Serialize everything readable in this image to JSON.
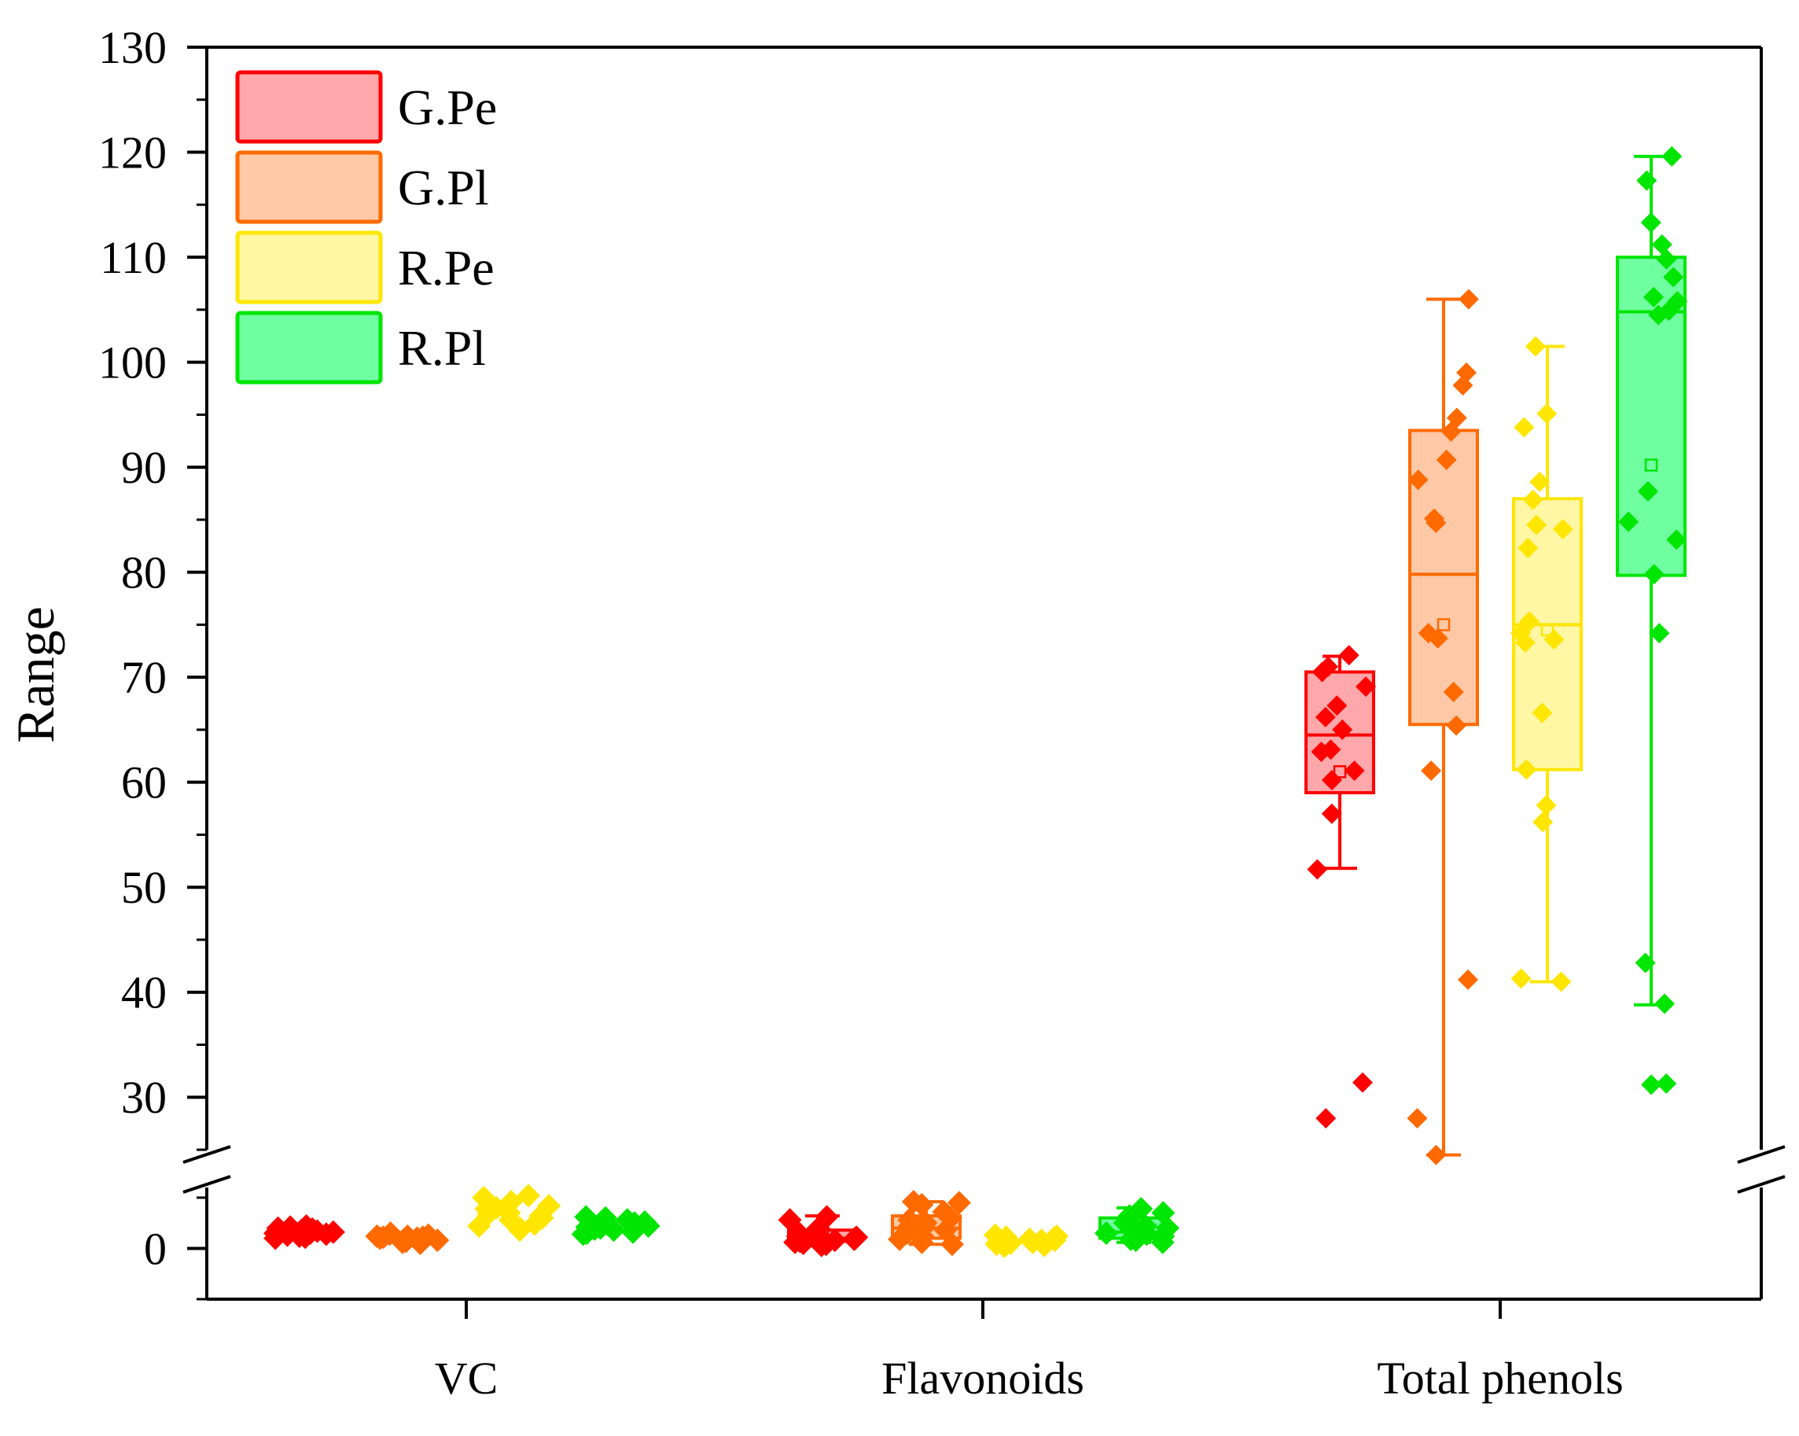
{
  "chart_data": {
    "type": "box",
    "ylabel": "Range",
    "xlabel": "",
    "categories": [
      "VC",
      "Flavonoids",
      "Total phenols"
    ],
    "y_axis": {
      "upper_segment_range": [
        25,
        130
      ],
      "upper_ticks": [
        30,
        40,
        50,
        60,
        70,
        80,
        90,
        100,
        110,
        120,
        130
      ],
      "lower_segment_range": [
        -5,
        6
      ],
      "lower_ticks": [
        0
      ],
      "axis_break": true
    },
    "legend": {
      "position": "top-left",
      "entries": [
        "G.Pe",
        "G.Pl",
        "R.Pe",
        "R.Pl"
      ]
    },
    "colors": {
      "G.Pe": {
        "stroke": "#ff0000",
        "fill": "#ffa8ab"
      },
      "G.Pl": {
        "stroke": "#ff6a00",
        "fill": "#ffc8a6"
      },
      "R.Pe": {
        "stroke": "#ffe600",
        "fill": "#fff7a4"
      },
      "R.Pl": {
        "stroke": "#00e600",
        "fill": "#6fffa0"
      }
    },
    "series": [
      {
        "name": "G.Pe",
        "groups": [
          {
            "category": "VC",
            "points": [
              1.1,
              1.5,
              2.0,
              1.3,
              1.8,
              2.2,
              1.0,
              1.6,
              1.9,
              1.2,
              2.1,
              1.4,
              1.7,
              1.5,
              1.2
            ]
          },
          {
            "category": "Flavonoids",
            "min": 0.3,
            "q1": 0.7,
            "median": 1.0,
            "q3": 1.8,
            "max": 3.2,
            "mean": 1.3,
            "points": [
              0.5,
              0.8,
              1.2,
              3.1,
              0.3,
              1.5,
              2.8,
              0.9,
              1.1,
              0.6,
              2.0,
              1.0,
              0.7,
              1.4,
              0.4
            ]
          },
          {
            "category": "Total phenols",
            "min": 51.8,
            "q1": 59,
            "median": 64.5,
            "q3": 70.5,
            "max": 72,
            "mean": 61,
            "points": [
              72.1,
              71.0,
              70.5,
              69.1,
              67.3,
              66.2,
              65.0,
              63.1,
              62.9,
              61.1,
              60.2,
              57.0,
              51.7,
              31.4,
              28.0
            ]
          }
        ]
      },
      {
        "name": "G.Pl",
        "groups": [
          {
            "category": "VC",
            "points": [
              0.8,
              1.2,
              1.5,
              1.0,
              0.6,
              1.3,
              0.9,
              1.1,
              1.4,
              0.7,
              1.0,
              1.2,
              0.8,
              1.1,
              0.5
            ]
          },
          {
            "category": "Flavonoids",
            "min": 0.4,
            "q1": 1.0,
            "median": 2.0,
            "q3": 3.2,
            "max": 4.6,
            "mean": 2.3,
            "points": [
              4.5,
              4.6,
              4.3,
              2.5,
              1.9,
              3.0,
              1.2,
              0.6,
              2.8,
              1.5,
              3.6,
              0.9,
              2.2,
              1.8,
              0.4
            ]
          },
          {
            "category": "Total phenols",
            "min": 24.5,
            "q1": 65.5,
            "median": 79.8,
            "q3": 93.5,
            "max": 106,
            "mean": 75,
            "points": [
              106.0,
              99.0,
              97.8,
              94.7,
              93.4,
              90.7,
              88.8,
              85.1,
              84.7,
              74.2,
              73.7,
              68.6,
              65.4,
              61.1,
              41.2,
              28.0,
              24.5
            ]
          }
        ]
      },
      {
        "name": "R.Pe",
        "groups": [
          {
            "category": "VC",
            "points": [
              2.0,
              3.5,
              5.0,
              4.2,
              2.8,
              3.2,
              1.8,
              4.6,
              3.9,
              2.4,
              3.0,
              4.0,
              2.2,
              3.4,
              5.2
            ]
          },
          {
            "category": "Flavonoids",
            "points": [
              0.3,
              0.8,
              1.2,
              0.5,
              0.9,
              1.1,
              0.4,
              0.7,
              1.3,
              0.6,
              1.0,
              0.8,
              0.2,
              0.9,
              0.6
            ]
          },
          {
            "category": "Total phenols",
            "min": 41,
            "q1": 61.2,
            "median": 75,
            "q3": 87,
            "max": 101.5,
            "mean": 74.5,
            "points": [
              101.5,
              95.1,
              93.8,
              88.6,
              86.9,
              84.5,
              84.1,
              82.3,
              75.3,
              74.2,
              73.6,
              73.3,
              66.6,
              61.2,
              57.8,
              56.2,
              41.3,
              41.0
            ]
          }
        ]
      },
      {
        "name": "R.Pl",
        "groups": [
          {
            "category": "VC",
            "points": [
              1.8,
              2.5,
              3.0,
              2.2,
              1.6,
              2.8,
              2.0,
              2.4,
              1.5,
              2.6,
              2.1,
              3.1,
              1.9,
              2.3,
              1.4
            ]
          },
          {
            "category": "Flavonoids",
            "min": 0.6,
            "q1": 1.0,
            "median": 1.6,
            "q3": 3.0,
            "max": 4.0,
            "mean": 1.8,
            "points": [
              3.9,
              3.2,
              2.5,
              1.8,
              1.2,
              0.8,
              2.9,
              1.5,
              0.6,
              2.2,
              1.0,
              3.5,
              1.4,
              0.9,
              2.0
            ]
          },
          {
            "category": "Total phenols",
            "min": 38.8,
            "q1": 79.7,
            "median": 104.8,
            "q3": 110,
            "max": 119.6,
            "mean": 90.2,
            "points": [
              119.6,
              117.3,
              113.3,
              111.2,
              109.8,
              108.1,
              106.2,
              105.8,
              104.5,
              104.9,
              87.7,
              84.8,
              83.1,
              79.8,
              74.2,
              42.8,
              38.9,
              31.3,
              31.2
            ]
          }
        ]
      }
    ]
  }
}
